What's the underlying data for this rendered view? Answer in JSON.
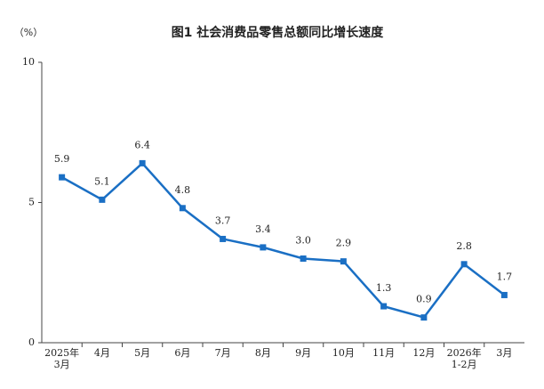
{
  "chart_data": {
    "type": "line",
    "title": "图1  社会消费品零售总额同比增长速度",
    "y_unit": "（%）",
    "categories": [
      "2025年\n3月",
      "4月",
      "5月",
      "6月",
      "7月",
      "8月",
      "9月",
      "10月",
      "11月",
      "12月",
      "2026年\n1-2月",
      "3月"
    ],
    "values": [
      5.9,
      5.1,
      6.4,
      4.8,
      3.7,
      3.4,
      3.0,
      2.9,
      1.3,
      0.9,
      2.8,
      1.7
    ],
    "value_labels": [
      "5.9",
      "5.1",
      "6.4",
      "4.8",
      "3.7",
      "3.4",
      "3.0",
      "2.9",
      "1.3",
      "0.9",
      "2.8",
      "1.7"
    ],
    "color": "#1a6fc4",
    "ylim": [
      0,
      10
    ],
    "yticks": [
      0,
      5,
      10
    ],
    "grid": false
  }
}
